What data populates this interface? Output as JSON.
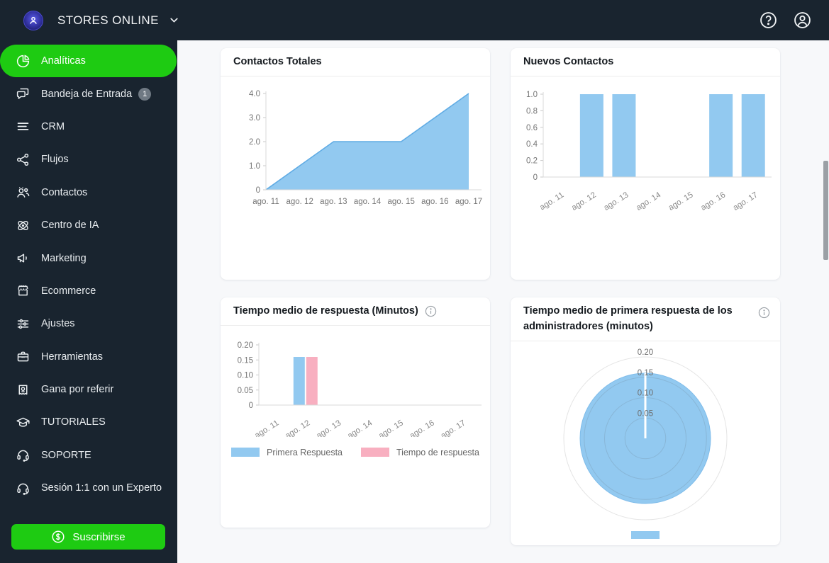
{
  "navbar": {
    "brand": "STORES ONLINE",
    "icons": {
      "brand_logo": "stores-online-logo",
      "caret": "chevron-down-icon",
      "help": "help-icon",
      "account": "account-icon"
    }
  },
  "sidebar": {
    "items": [
      {
        "label": "Analíticas",
        "icon": "pie-chart",
        "active": true
      },
      {
        "label": "Bandeja de Entrada",
        "icon": "chat",
        "badge": "1"
      },
      {
        "label": "CRM",
        "icon": "list"
      },
      {
        "label": "Flujos",
        "icon": "share"
      },
      {
        "label": "Contactos",
        "icon": "people"
      },
      {
        "label": "Centro de IA",
        "icon": "atom"
      },
      {
        "label": "Marketing",
        "icon": "megaphone"
      },
      {
        "label": "Ecommerce",
        "icon": "store"
      },
      {
        "label": "Ajustes",
        "icon": "sliders"
      },
      {
        "label": "Herramientas",
        "icon": "toolbox"
      },
      {
        "label": "Gana por referir",
        "icon": "referral"
      },
      {
        "label": "TUTORIALES",
        "icon": "graduation-cap"
      },
      {
        "label": "SOPORTE",
        "icon": "headset"
      },
      {
        "label": "Sesión 1:1 con un Experto",
        "icon": "headset"
      }
    ],
    "subscribe_label": "Suscribirse",
    "subscribe_icon": "dollar-coin-icon"
  },
  "colors": {
    "dark_bg": "#19242f",
    "accent_green": "#1ecb12",
    "chart_blue": "#92c9f0",
    "chart_blue_line": "#5fabe4",
    "chart_pink": "#f8afc0",
    "axis_text": "#757575",
    "main_bg": "#f7f8fa"
  },
  "chart_data": [
    {
      "id": "contactos-totales",
      "type": "area",
      "title": "Contactos Totales",
      "categories": [
        "ago. 11",
        "ago. 12",
        "ago. 13",
        "ago. 14",
        "ago. 15",
        "ago. 16",
        "ago. 17"
      ],
      "values": [
        0,
        1,
        2,
        2,
        2,
        3,
        4
      ],
      "y_ticks": [
        0,
        1,
        2,
        3,
        4
      ],
      "y_tick_labels": [
        "0",
        "1.0",
        "2.0",
        "3.0",
        "4.0"
      ],
      "ylim": [
        0,
        4
      ],
      "grid": false,
      "x_labels_rotated": false
    },
    {
      "id": "nuevos-contactos",
      "type": "bar",
      "title": "Nuevos Contactos",
      "categories": [
        "ago. 11",
        "ago. 12",
        "ago. 13",
        "ago. 14",
        "ago. 15",
        "ago. 16",
        "ago. 17"
      ],
      "values": [
        0,
        1,
        1,
        0,
        0,
        1,
        1
      ],
      "y_ticks": [
        0,
        0.2,
        0.4,
        0.6,
        0.8,
        1.0
      ],
      "y_tick_labels": [
        "0",
        "0.2",
        "0.4",
        "0.6",
        "0.8",
        "1.0"
      ],
      "ylim": [
        0,
        1
      ],
      "grid": false,
      "x_labels_rotated": true
    },
    {
      "id": "tiempo-medio-respuesta",
      "type": "grouped_bar",
      "title": "Tiempo medio de respuesta (Minutos)",
      "has_info_icon": true,
      "categories": [
        "ago. 11",
        "ago. 12",
        "ago. 13",
        "ago. 14",
        "ago. 15",
        "ago. 16",
        "ago. 17"
      ],
      "series": [
        {
          "name": "Primera Respuesta",
          "color": "#92c9f0",
          "values": [
            0,
            0.16,
            0,
            0,
            0,
            0,
            0
          ]
        },
        {
          "name": "Tiempo de respuesta",
          "color": "#f8afc0",
          "values": [
            0,
            0.16,
            0,
            0,
            0,
            0,
            0
          ]
        }
      ],
      "y_ticks": [
        0,
        0.05,
        0.1,
        0.15,
        0.2
      ],
      "y_tick_labels": [
        "0",
        "0.05",
        "0.10",
        "0.15",
        "0.20"
      ],
      "ylim": [
        0,
        0.2
      ],
      "grid": false,
      "x_labels_rotated": true,
      "legend_position": "bottom"
    },
    {
      "id": "tiempo-primera-respuesta-admins",
      "type": "polar_area",
      "title": "Tiempo medio de primera respuesta de los administradores (minutos)",
      "has_info_icon": true,
      "value": 0.16,
      "ring_ticks": [
        0.05,
        0.1,
        0.15,
        0.2
      ],
      "ring_tick_labels": [
        "0.05",
        "0.10",
        "0.15",
        "0.20"
      ],
      "rlim": [
        0,
        0.2
      ],
      "legend_swatch": true
    }
  ]
}
